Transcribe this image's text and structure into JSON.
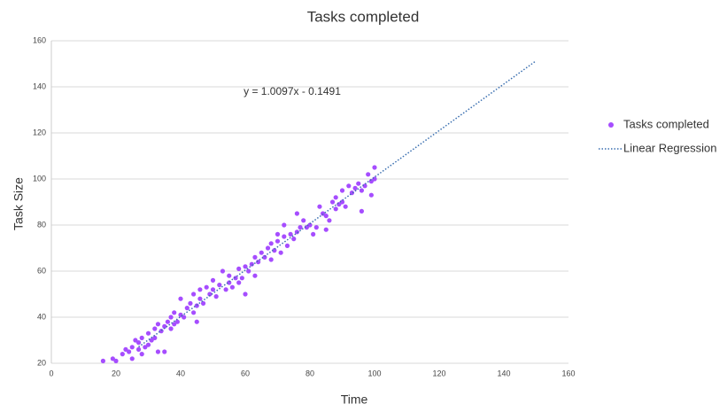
{
  "chart_data": {
    "type": "scatter",
    "title": "Tasks completed",
    "x_label": "Time",
    "y_label": "Task Size",
    "annotation": "y = 1.0097x - 0.1491",
    "xlim": [
      0,
      160
    ],
    "xticks": [
      0,
      20,
      40,
      60,
      80,
      100,
      120,
      140,
      160
    ],
    "ylim": [
      20,
      160
    ],
    "yticks": [
      20,
      40,
      60,
      80,
      100,
      120,
      140,
      160
    ],
    "grid": true,
    "legend": "right",
    "series": [
      {
        "name": "Tasks completed",
        "color": "#a64dff",
        "x": [
          16,
          19,
          20,
          22,
          23,
          24,
          25,
          25,
          26,
          27,
          27,
          28,
          28,
          29,
          30,
          30,
          31,
          32,
          32,
          33,
          34,
          35,
          35,
          36,
          37,
          37,
          38,
          38,
          39,
          40,
          40,
          41,
          42,
          43,
          44,
          44,
          45,
          46,
          46,
          47,
          48,
          49,
          50,
          50,
          51,
          52,
          53,
          54,
          55,
          55,
          56,
          57,
          58,
          58,
          59,
          60,
          61,
          62,
          63,
          63,
          64,
          65,
          66,
          67,
          68,
          68,
          69,
          70,
          71,
          72,
          72,
          73,
          74,
          75,
          76,
          76,
          77,
          78,
          79,
          80,
          81,
          82,
          83,
          84,
          85,
          86,
          87,
          88,
          88,
          89,
          90,
          90,
          91,
          92,
          93,
          94,
          95,
          96,
          97,
          98,
          99,
          100,
          100,
          99,
          96,
          85,
          70,
          60,
          45,
          33
        ],
        "values": [
          21,
          22,
          21,
          24,
          26,
          25,
          22,
          27,
          30,
          26,
          29,
          31,
          24,
          27,
          28,
          33,
          30,
          35,
          31,
          37,
          34,
          25,
          36,
          38,
          40,
          35,
          42,
          37,
          38,
          41,
          48,
          40,
          44,
          46,
          42,
          50,
          45,
          48,
          52,
          46,
          53,
          50,
          52,
          56,
          49,
          54,
          60,
          52,
          55,
          58,
          53,
          57,
          55,
          61,
          57,
          62,
          60,
          63,
          66,
          58,
          64,
          68,
          66,
          70,
          65,
          72,
          69,
          73,
          68,
          75,
          80,
          71,
          76,
          74,
          77,
          85,
          79,
          82,
          79,
          80,
          76,
          79,
          88,
          85,
          84,
          82,
          90,
          87,
          92,
          89,
          95,
          90,
          88,
          97,
          94,
          96,
          98,
          95,
          97,
          102,
          99,
          105,
          100,
          93,
          86,
          78,
          76,
          50,
          38,
          25
        ]
      },
      {
        "name": "Linear Regression",
        "type": "line",
        "color": "#3a6fb0",
        "x": [
          27,
          150
        ],
        "values": [
          27.11,
          151.31
        ]
      }
    ]
  }
}
